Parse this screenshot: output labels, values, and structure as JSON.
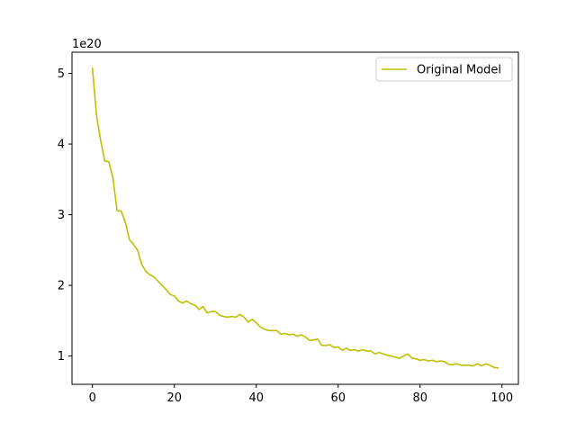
{
  "chart_data": {
    "type": "line",
    "title": "",
    "xlabel": "",
    "ylabel": "",
    "y_offset_label": "1e20",
    "xlim": [
      -5,
      104
    ],
    "ylim": [
      0.6,
      5.3
    ],
    "xticks": [
      0,
      20,
      40,
      60,
      80,
      100
    ],
    "yticks": [
      1,
      2,
      3,
      4,
      5
    ],
    "grid": false,
    "legend": {
      "placement": "top-right"
    },
    "series": [
      {
        "name": "Original Model",
        "color": "#bfbf00",
        "x": [
          0,
          1,
          2,
          3,
          4,
          5,
          6,
          7,
          8,
          9,
          10,
          11,
          12,
          13,
          14,
          15,
          16,
          17,
          18,
          19,
          20,
          21,
          22,
          23,
          24,
          25,
          26,
          27,
          28,
          29,
          30,
          31,
          32,
          33,
          34,
          35,
          36,
          37,
          38,
          39,
          40,
          41,
          42,
          43,
          44,
          45,
          46,
          47,
          48,
          49,
          50,
          51,
          52,
          53,
          54,
          55,
          56,
          57,
          58,
          59,
          60,
          61,
          62,
          63,
          64,
          65,
          66,
          67,
          68,
          69,
          70,
          71,
          72,
          73,
          74,
          75,
          76,
          77,
          78,
          79,
          80,
          81,
          82,
          83,
          84,
          85,
          86,
          87,
          88,
          89,
          90,
          91,
          92,
          93,
          94,
          95,
          96,
          97,
          98,
          99
        ],
        "values": [
          5.07,
          4.4,
          4.05,
          3.76,
          3.75,
          3.52,
          3.06,
          3.05,
          2.9,
          2.65,
          2.58,
          2.5,
          2.3,
          2.2,
          2.15,
          2.12,
          2.06,
          2.0,
          1.94,
          1.87,
          1.85,
          1.78,
          1.75,
          1.78,
          1.74,
          1.72,
          1.66,
          1.7,
          1.61,
          1.63,
          1.63,
          1.58,
          1.56,
          1.55,
          1.56,
          1.55,
          1.59,
          1.55,
          1.48,
          1.52,
          1.47,
          1.41,
          1.38,
          1.36,
          1.36,
          1.36,
          1.31,
          1.32,
          1.3,
          1.31,
          1.28,
          1.3,
          1.27,
          1.22,
          1.23,
          1.24,
          1.15,
          1.15,
          1.16,
          1.12,
          1.13,
          1.08,
          1.11,
          1.08,
          1.09,
          1.07,
          1.09,
          1.07,
          1.07,
          1.03,
          1.05,
          1.03,
          1.01,
          1.0,
          0.98,
          0.97,
          1.0,
          1.03,
          0.97,
          0.96,
          0.94,
          0.95,
          0.93,
          0.94,
          0.92,
          0.93,
          0.92,
          0.88,
          0.88,
          0.89,
          0.87,
          0.87,
          0.87,
          0.86,
          0.89,
          0.86,
          0.89,
          0.87,
          0.84,
          0.83
        ]
      }
    ]
  }
}
